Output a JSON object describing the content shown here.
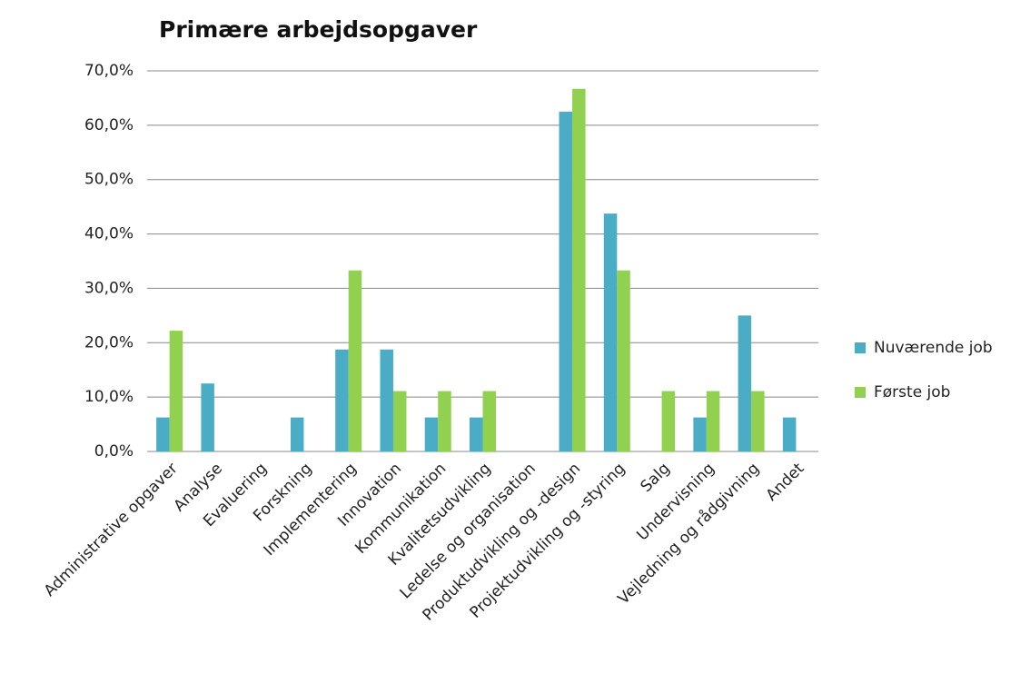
{
  "chart_data": {
    "type": "bar",
    "title": "Primære arbejdsopgaver",
    "categories": [
      "Administrative opgaver",
      "Analyse",
      "Evaluering",
      "Forskning",
      "Implementering",
      "Innovation",
      "Kommunikation",
      "Kvalitetsudvikling",
      "Ledelse og organisation",
      "Produktudvikling og -design",
      "Projektudvikling og -styring",
      "Salg",
      "Undervisning",
      "Vejledning og rådgivning",
      "Andet"
    ],
    "series": [
      {
        "name": "Nuværende job",
        "color": "#4bacc6",
        "values": [
          6.25,
          12.5,
          0,
          6.25,
          18.75,
          18.75,
          6.25,
          6.25,
          0,
          62.5,
          43.75,
          0,
          6.25,
          25,
          6.25
        ]
      },
      {
        "name": "Første job",
        "color": "#92d050",
        "values": [
          22.2,
          0,
          0,
          0,
          33.3,
          11.1,
          11.1,
          11.1,
          0,
          66.7,
          33.3,
          11.1,
          11.1,
          11.1,
          0
        ]
      }
    ],
    "ylim": [
      0,
      70
    ],
    "yticks": [
      {
        "value": 0,
        "label": "0,0%"
      },
      {
        "value": 10,
        "label": "10,0%"
      },
      {
        "value": 20,
        "label": "20,0%"
      },
      {
        "value": 30,
        "label": "30,0%"
      },
      {
        "value": 40,
        "label": "40,0%"
      },
      {
        "value": 50,
        "label": "50,0%"
      },
      {
        "value": 60,
        "label": "60,0%"
      },
      {
        "value": 70,
        "label": "70,0%"
      }
    ],
    "grid": true,
    "legend": "right"
  }
}
